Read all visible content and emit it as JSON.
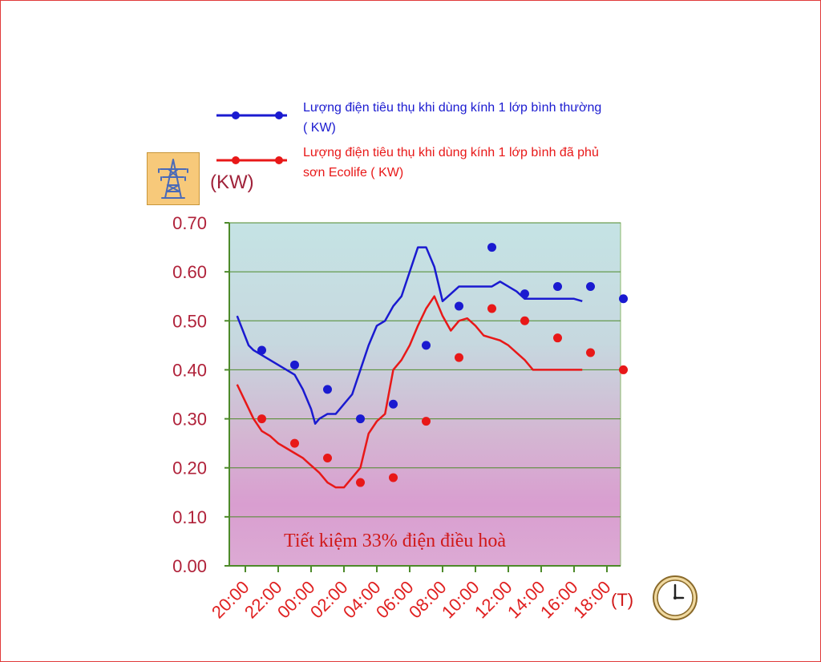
{
  "chart_data": {
    "type": "line",
    "unit_label": "(KW)",
    "x_unit_label": "(T)",
    "annotation": "Tiết kiệm 33% điện điều hoà",
    "ylim": [
      0,
      0.7
    ],
    "yticks": [
      "0.00",
      "0.10",
      "0.20",
      "0.30",
      "0.40",
      "0.50",
      "0.60",
      "0.70"
    ],
    "xticks": [
      "20:00",
      "22:00",
      "00:00",
      "02:00",
      "04:00",
      "06:00",
      "08:00",
      "10:00",
      "12:00",
      "14:00",
      "16:00",
      "18:00"
    ],
    "grid": true,
    "legend_position": "top",
    "colors": {
      "blue": "#1a1ad0",
      "red": "#e81818",
      "plot_top": "#c5e3e4",
      "plot_bottom": "#d8a2d2",
      "grid": "#4d8a2a",
      "axis_text": "#b0223a"
    },
    "series": [
      {
        "name": "Lượng điện tiêu thụ khi dùng kính 1 lớp bình thường ( KW)",
        "color": "#1a1ad0",
        "x": [
          -0.5,
          0.2,
          0.5,
          1.0,
          1.5,
          2.0,
          2.5,
          3.0,
          3.5,
          4.0,
          4.25,
          4.5,
          5.0,
          5.5,
          6.0,
          6.5,
          7.0,
          7.5,
          8.0,
          8.5,
          9.0,
          9.5,
          10.0,
          10.5,
          11.0,
          11.5,
          12.0,
          12.5,
          13.0,
          13.5,
          14.0,
          14.5,
          15.0,
          15.5,
          16.0,
          16.5,
          17.0,
          17.5,
          18.0,
          18.5,
          19.0,
          19.5,
          20.0,
          20.5
        ],
        "y": [
          0.51,
          0.45,
          0.44,
          0.43,
          0.42,
          0.41,
          0.4,
          0.39,
          0.36,
          0.32,
          0.29,
          0.3,
          0.31,
          0.31,
          0.33,
          0.35,
          0.4,
          0.45,
          0.49,
          0.5,
          0.53,
          0.55,
          0.6,
          0.65,
          0.65,
          0.61,
          0.54,
          0.555,
          0.57,
          0.57,
          0.57,
          0.57,
          0.57,
          0.58,
          0.57,
          0.56,
          0.545,
          0.545,
          0.545,
          0.545,
          0.545,
          0.545,
          0.545,
          0.54
        ],
        "markers_x": [
          1.0,
          3.0,
          5.0,
          7.0,
          9.0,
          11.0,
          13.0,
          15.0,
          17.0,
          19.0,
          21.0,
          23.0
        ],
        "markers_y": [
          0.44,
          0.41,
          0.36,
          0.3,
          0.33,
          0.45,
          0.53,
          0.65,
          0.555,
          0.57,
          0.57,
          0.545
        ]
      },
      {
        "name": "Lượng điện tiêu thụ khi dùng kính 1 lớp bình đã phủ sơn Ecolife ( KW)",
        "color": "#e81818",
        "x": [
          -0.5,
          0.0,
          0.5,
          1.0,
          1.5,
          2.0,
          2.5,
          3.0,
          3.5,
          4.0,
          4.5,
          5.0,
          5.5,
          6.0,
          6.5,
          7.0,
          7.5,
          8.0,
          8.5,
          9.0,
          9.5,
          10.0,
          10.5,
          11.0,
          11.5,
          12.0,
          12.5,
          13.0,
          13.5,
          14.0,
          14.5,
          15.0,
          15.5,
          16.0,
          16.5,
          17.0,
          17.5,
          18.0,
          18.5,
          19.0,
          19.5,
          20.0,
          20.5
        ],
        "y": [
          0.37,
          0.335,
          0.3,
          0.275,
          0.265,
          0.25,
          0.24,
          0.23,
          0.22,
          0.205,
          0.19,
          0.17,
          0.16,
          0.16,
          0.18,
          0.2,
          0.27,
          0.295,
          0.31,
          0.4,
          0.42,
          0.45,
          0.49,
          0.525,
          0.55,
          0.51,
          0.48,
          0.5,
          0.505,
          0.49,
          0.47,
          0.465,
          0.46,
          0.45,
          0.435,
          0.42,
          0.4,
          0.4,
          0.4,
          0.4,
          0.4,
          0.4,
          0.4
        ],
        "markers_x": [
          1.0,
          3.0,
          5.0,
          7.0,
          9.0,
          11.0,
          13.0,
          15.0,
          17.0,
          19.0,
          21.0,
          23.0
        ],
        "markers_y": [
          0.3,
          0.25,
          0.22,
          0.17,
          0.18,
          0.295,
          0.425,
          0.525,
          0.5,
          0.465,
          0.435,
          0.4
        ]
      }
    ]
  }
}
